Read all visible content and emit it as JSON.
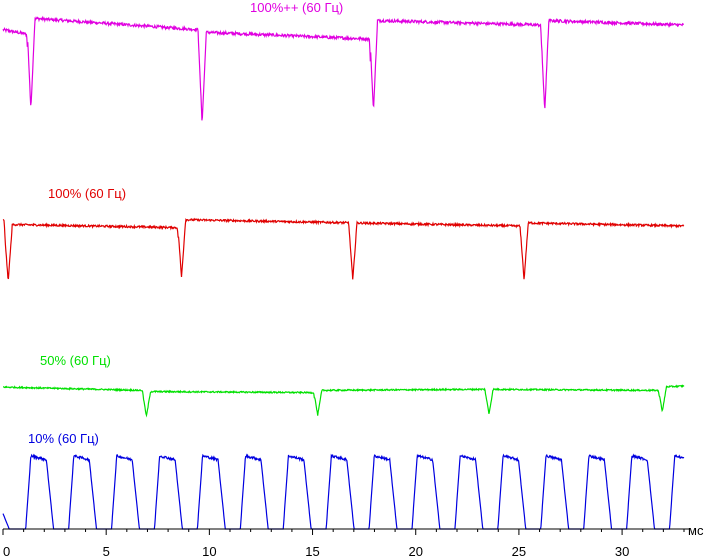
{
  "chart_data": {
    "type": "line",
    "xlabel": "мс",
    "xlim": [
      0,
      33
    ],
    "x_ticks": [
      0,
      5,
      10,
      15,
      20,
      25,
      30
    ],
    "grid": false,
    "series": [
      {
        "name": "100%++ (60 Гц)",
        "color": "#e000e0",
        "baseline": 0.88,
        "dip_depth": 0.78,
        "dip_times": [
          1.2,
          9.5,
          17.8,
          26.1
        ],
        "segment_levels": [
          [
            0.9,
            0.86
          ],
          [
            1.0,
            0.9
          ],
          [
            0.88,
            0.82
          ],
          [
            0.98,
            0.94
          ]
        ]
      },
      {
        "name": "100% (60 Гц)",
        "color": "#e00000",
        "baseline": 0.9,
        "dip_depth": 0.72,
        "dip_times": [
          0.1,
          8.5,
          16.8,
          25.1
        ],
        "segment_levels": [
          [
            0.88,
            0.84
          ],
          [
            0.82,
            0.78
          ],
          [
            0.88,
            0.84
          ],
          [
            0.84,
            0.8
          ]
        ]
      },
      {
        "name": "50% (60 Гц)",
        "color": "#00e000",
        "baseline": 0.75,
        "dip_depth": 0.45,
        "dip_times": [
          6.8,
          15.1,
          23.4,
          31.8
        ],
        "segment_levels": [
          [
            0.78,
            0.72
          ],
          [
            0.7,
            0.68
          ],
          [
            0.72,
            0.74
          ],
          [
            0.74,
            0.72
          ],
          [
            0.78,
            0.8
          ]
        ]
      },
      {
        "name": "10% (60 Гц)",
        "color": "#0000e0",
        "baseline": 0.0,
        "pulse_period": 2.08,
        "pulse_start": 1.1,
        "pulse_height": 0.95
      }
    ]
  }
}
